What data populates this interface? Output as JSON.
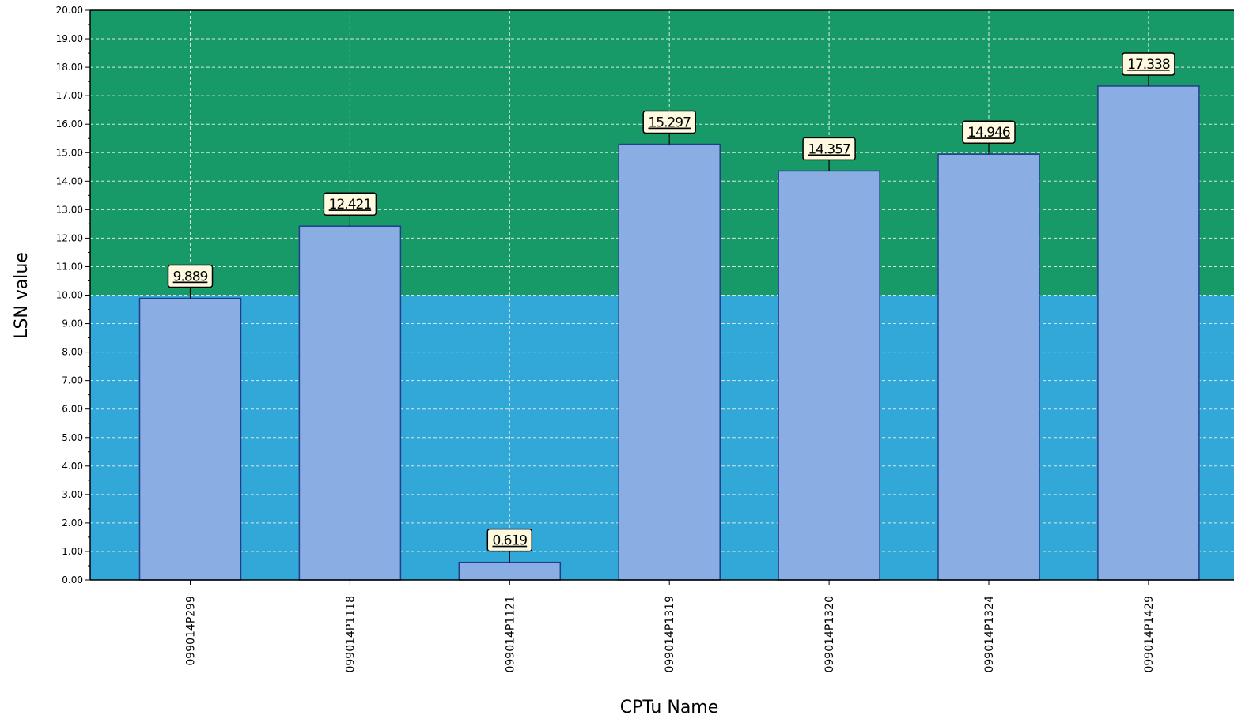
{
  "chart_data": {
    "type": "bar",
    "title": "",
    "xlabel": "CPTu Name",
    "ylabel": "LSN value",
    "ylim": [
      0,
      20
    ],
    "ytick_step": 1,
    "ytick_decimals": 2,
    "grid": true,
    "categories": [
      "099014P299",
      "099014P1118",
      "099014P1121",
      "099014P1319",
      "099014P1320",
      "099014P1324",
      "099014P1429"
    ],
    "values": [
      9.889,
      12.421,
      0.619,
      15.297,
      14.357,
      14.946,
      17.338
    ],
    "data_labels": [
      "9.889",
      "12.421",
      "0.619",
      "15.297",
      "14.357",
      "14.946",
      "17.338"
    ],
    "background_bands": [
      {
        "from": 0,
        "to": 10,
        "color": "#32a8d8"
      },
      {
        "from": 10,
        "to": 20,
        "color": "#189a68"
      }
    ],
    "colors": {
      "bar_fill": "#8aaee3",
      "bar_stroke": "#1f3f8a",
      "label_box_fill": "#fffadf",
      "gridline": "#d8e8e0"
    }
  }
}
